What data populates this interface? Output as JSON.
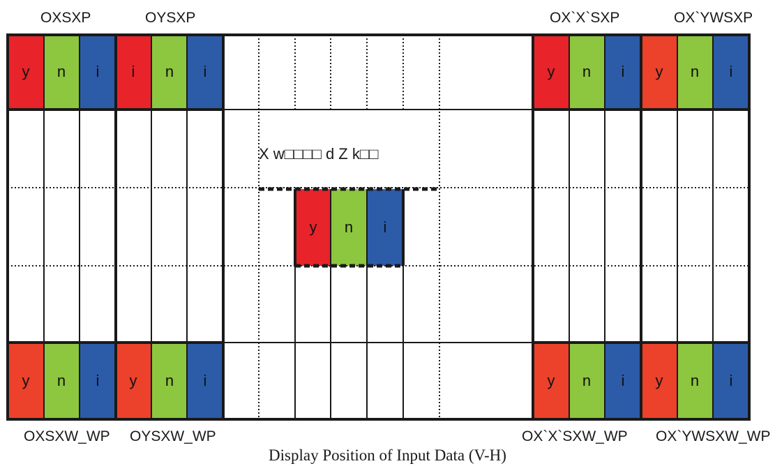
{
  "colors": {
    "red": "#e8232a",
    "red_orange": "#ec412a",
    "green": "#8dc63f",
    "blue": "#2c5ba8",
    "grid": "#1a1a1a"
  },
  "pixel_letters": [
    "y",
    "n",
    "i"
  ],
  "corner_labels": {
    "top_left_1": "OXSXP",
    "top_left_2": "OYSXP",
    "top_right_1": "OX`X`SXP",
    "top_right_2": "OX`YWSXP",
    "bottom_left_1": "OXSXW_WP",
    "bottom_left_2": "OYSXW_WP",
    "bottom_right_1": "OX`X`SXW_WP",
    "bottom_right_2": "OX`YWSXW_WP"
  },
  "center_label": "X w□□□□ d Z k□□",
  "caption": "Display Position of Input Data (V-H)"
}
